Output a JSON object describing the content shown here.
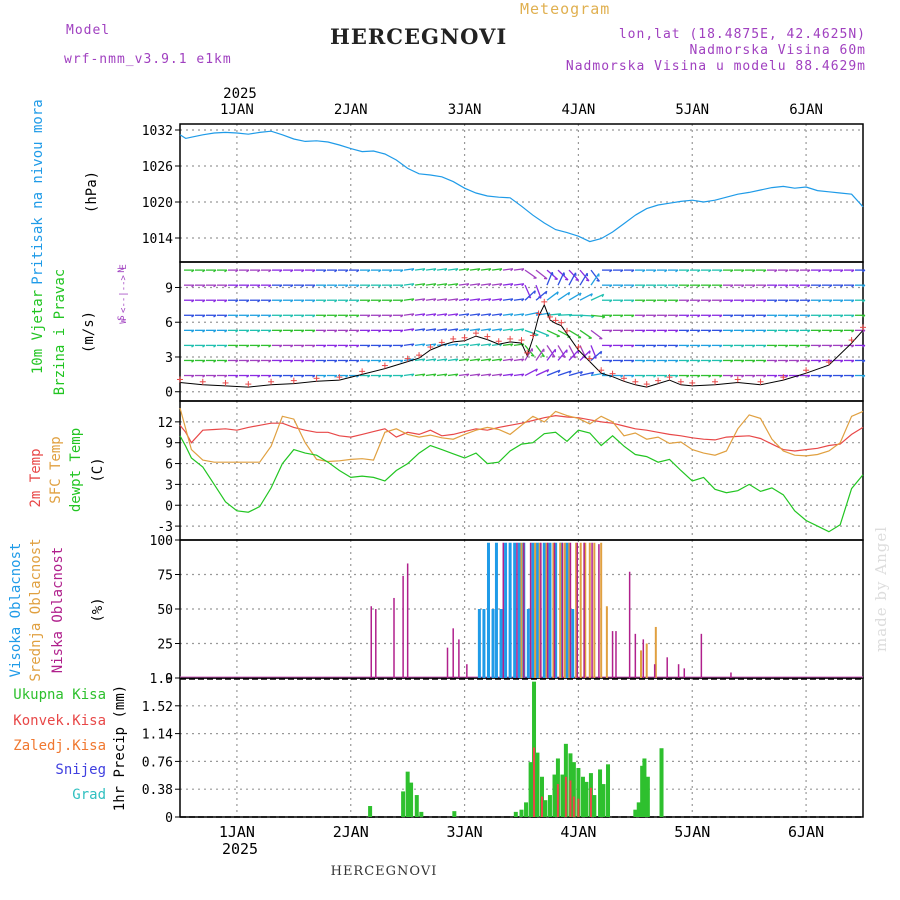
{
  "header": {
    "model_label": "Model",
    "model_value": "wrf-nmm_v3.9.1 e1km",
    "title": "HERCEGNOVI",
    "meteogram_label": "Meteogram",
    "coords": "lon,lat (18.4875E, 42.4625N)",
    "altitude": "Nadmorska Visina 60m",
    "model_altitude": "Nadmorska Visina u modelu 88.4629m",
    "footer_title": "HERCEGNOVI",
    "watermark": "made by Angel"
  },
  "colors": {
    "pressure": "#1f9be8",
    "temp2m": "#e84848",
    "sfc_temp": "#e0a040",
    "dewpt": "#22c522",
    "high_cloud": "#1f9be8",
    "mid_cloud": "#e0a040",
    "low_cloud": "#b0208c",
    "total_precip": "#2ec02e",
    "conv_precip": "#e84848",
    "header_purple": "#a040c0",
    "title_orange": "#e0b050"
  },
  "chart_data": [
    {
      "type": "line",
      "panel": "pressure",
      "ylabel_lines": [
        "Pritisak na nivou mora",
        "(hPa)"
      ],
      "ylim": [
        1010,
        1033
      ],
      "yticks": [
        1014,
        1020,
        1026,
        1032
      ],
      "x_top": {
        "year": "2025",
        "labels": [
          "1JAN",
          "2JAN",
          "3JAN",
          "4JAN",
          "5JAN",
          "6JAN"
        ]
      },
      "x_days": [
        0.5,
        0.55,
        0.6,
        0.7,
        0.8,
        0.9,
        1.0,
        1.1,
        1.2,
        1.3,
        1.4,
        1.5,
        1.6,
        1.7,
        1.8,
        1.9,
        2.0,
        2.1,
        2.2,
        2.3,
        2.4,
        2.5,
        2.6,
        2.7,
        2.8,
        2.9,
        3.0,
        3.1,
        3.2,
        3.3,
        3.4,
        3.5,
        3.6,
        3.7,
        3.8,
        3.9,
        4.0,
        4.1,
        4.2,
        4.3,
        4.4,
        4.5,
        4.6,
        4.7,
        4.8,
        4.9,
        5.0,
        5.1,
        5.2,
        5.3,
        5.4,
        5.5,
        5.6,
        5.7,
        5.8,
        5.9,
        6.0,
        6.1,
        6.2,
        6.3,
        6.4,
        6.5
      ],
      "series": [
        {
          "values": [
            1031.2,
            1030.6,
            1030.8,
            1031.2,
            1031.5,
            1031.6,
            1031.5,
            1031.3,
            1031.6,
            1031.8,
            1031.2,
            1030.5,
            1030.1,
            1030.2,
            1030.0,
            1029.5,
            1028.9,
            1028.4,
            1028.5,
            1028.0,
            1027.0,
            1025.6,
            1024.7,
            1024.5,
            1024.2,
            1023.4,
            1022.3,
            1021.5,
            1021.0,
            1020.8,
            1020.7,
            1019.3,
            1017.8,
            1016.5,
            1015.4,
            1014.9,
            1014.3,
            1013.4,
            1013.9,
            1015.0,
            1016.4,
            1017.8,
            1018.9,
            1019.5,
            1019.8,
            1020.1,
            1020.3,
            1020.0,
            1020.3,
            1020.8,
            1021.3,
            1021.6,
            1022.0,
            1022.4,
            1022.6,
            1022.3,
            1022.5,
            1021.9,
            1021.7,
            1021.5,
            1021.3,
            1019.2
          ]
        }
      ]
    },
    {
      "type": "line",
      "panel": "wind",
      "ylabel_lines": [
        "10m Vjetar",
        "Brzina i Pravac",
        "(m/s)"
      ],
      "compass": [
        "N",
        "W <--|--> E",
        "S"
      ],
      "ylim": [
        -0.8,
        11.2
      ],
      "yticks": [
        0,
        3,
        6,
        9
      ],
      "x_days": [
        0.5,
        0.7,
        0.9,
        1.1,
        1.3,
        1.5,
        1.7,
        1.9,
        2.1,
        2.3,
        2.5,
        2.6,
        2.7,
        2.8,
        2.9,
        3.0,
        3.1,
        3.2,
        3.3,
        3.4,
        3.5,
        3.55,
        3.6,
        3.65,
        3.7,
        3.75,
        3.8,
        3.85,
        3.9,
        4.0,
        4.1,
        4.2,
        4.3,
        4.4,
        4.5,
        4.6,
        4.7,
        4.8,
        4.9,
        5.0,
        5.2,
        5.4,
        5.6,
        5.8,
        6.0,
        6.2,
        6.4,
        6.5
      ],
      "series": [
        {
          "name": "speed",
          "values": [
            0.8,
            0.6,
            0.5,
            0.4,
            0.6,
            0.7,
            0.9,
            1.0,
            1.5,
            2.0,
            2.6,
            2.9,
            3.6,
            4.0,
            4.3,
            4.4,
            4.8,
            4.5,
            4.1,
            4.3,
            4.2,
            3.1,
            4.6,
            6.5,
            7.5,
            6.2,
            5.9,
            5.7,
            5.0,
            3.6,
            2.6,
            1.6,
            1.3,
            0.9,
            0.6,
            0.4,
            0.7,
            1.0,
            0.6,
            0.5,
            0.6,
            0.8,
            0.6,
            1.0,
            1.6,
            2.3,
            4.2,
            5.3
          ]
        },
        {
          "name": "gust",
          "values": [
            0.8,
            0.6,
            0.5,
            0.4,
            0.6,
            0.7,
            0.9,
            1.0,
            1.5,
            2.0,
            2.6,
            2.9,
            3.6,
            4.0,
            4.3,
            4.4,
            4.8,
            4.5,
            4.1,
            4.3,
            4.2,
            3.1,
            4.6,
            6.5,
            7.5,
            6.2,
            5.9,
            5.7,
            5.0,
            3.6,
            2.6,
            1.6,
            1.3,
            0.9,
            0.6,
            0.4,
            0.7,
            1.0,
            0.6,
            0.5,
            0.6,
            0.8,
            0.6,
            1.0,
            1.6,
            2.3,
            4.2,
            5.3
          ]
        }
      ]
    },
    {
      "type": "line",
      "panel": "temperature",
      "ylabel_lines": [
        "2m Temp",
        "SFC Temp",
        "dewpt Temp",
        "(C)"
      ],
      "ylim": [
        -5,
        15
      ],
      "yticks": [
        -3,
        0,
        3,
        6,
        9,
        12
      ],
      "x_days": [
        0.5,
        0.55,
        0.6,
        0.7,
        0.8,
        0.9,
        1.0,
        1.1,
        1.2,
        1.3,
        1.4,
        1.5,
        1.6,
        1.7,
        1.8,
        1.9,
        2.0,
        2.1,
        2.2,
        2.3,
        2.4,
        2.5,
        2.6,
        2.7,
        2.8,
        2.9,
        3.0,
        3.1,
        3.2,
        3.3,
        3.4,
        3.5,
        3.6,
        3.7,
        3.8,
        3.9,
        4.0,
        4.1,
        4.2,
        4.3,
        4.4,
        4.5,
        4.6,
        4.7,
        4.8,
        4.9,
        5.0,
        5.1,
        5.2,
        5.3,
        5.4,
        5.5,
        5.6,
        5.7,
        5.8,
        5.9,
        6.0,
        6.1,
        6.2,
        6.3,
        6.4,
        6.5
      ],
      "series": [
        {
          "name": "2m Temp",
          "values": [
            11.5,
            10.5,
            9.0,
            10.8,
            10.9,
            11.0,
            10.8,
            11.2,
            11.5,
            11.8,
            11.8,
            11.2,
            10.8,
            10.5,
            10.5,
            10.0,
            9.8,
            10.2,
            10.6,
            11.0,
            9.8,
            10.5,
            10.2,
            10.8,
            10.0,
            10.2,
            10.6,
            11.0,
            10.8,
            11.2,
            11.5,
            11.8,
            12.2,
            12.6,
            12.9,
            12.7,
            12.6,
            12.3,
            12.0,
            11.8,
            11.4,
            11.0,
            10.8,
            10.5,
            10.2,
            10.0,
            9.7,
            9.5,
            9.4,
            9.8,
            9.9,
            10.0,
            9.6,
            8.8,
            8.0,
            7.8,
            8.0,
            8.2,
            8.6,
            8.8,
            10.2,
            11.2
          ]
        },
        {
          "name": "SFC Temp",
          "values": [
            14.0,
            11.0,
            8.0,
            6.5,
            6.2,
            6.2,
            6.2,
            6.2,
            6.2,
            8.5,
            12.8,
            12.4,
            9.0,
            6.6,
            6.3,
            6.4,
            6.6,
            6.7,
            6.5,
            10.5,
            11.0,
            10.2,
            9.8,
            10.1,
            9.7,
            9.5,
            10.2,
            10.8,
            11.2,
            10.9,
            10.2,
            11.5,
            12.8,
            12.0,
            13.5,
            12.9,
            12.5,
            11.7,
            12.8,
            12.0,
            10.0,
            10.4,
            9.5,
            9.8,
            8.9,
            9.1,
            8.0,
            7.5,
            7.2,
            7.8,
            11.0,
            13.0,
            12.5,
            9.5,
            7.8,
            7.2,
            7.1,
            7.3,
            7.8,
            9.0,
            12.8,
            13.5
          ]
        },
        {
          "name": "dewpt Temp",
          "values": [
            10.0,
            8.5,
            6.8,
            5.5,
            3.0,
            0.5,
            -0.8,
            -1.0,
            -0.2,
            2.5,
            6.0,
            8.0,
            7.5,
            7.2,
            6.2,
            5.0,
            4.0,
            4.2,
            4.0,
            3.5,
            5.0,
            6.0,
            7.5,
            8.6,
            8.0,
            7.4,
            6.8,
            7.5,
            6.0,
            6.2,
            7.8,
            8.8,
            9.0,
            10.3,
            10.5,
            9.2,
            10.8,
            10.4,
            8.6,
            10.0,
            8.5,
            7.3,
            7.0,
            6.2,
            6.6,
            5.0,
            3.5,
            4.0,
            2.3,
            1.8,
            2.1,
            3.0,
            2.0,
            2.5,
            1.5,
            -0.8,
            -2.2,
            -3.0,
            -3.8,
            -2.8,
            2.4,
            4.4
          ]
        }
      ]
    },
    {
      "type": "bar",
      "panel": "cloud",
      "ylabel_lines": [
        "Visoka Oblacnost",
        "Srednja Oblacnost",
        "Niska Oblacnost",
        "(%)"
      ],
      "ylim": [
        0,
        100
      ],
      "yticks": [
        0,
        25,
        50,
        75,
        100
      ],
      "series": [
        {
          "name": "Visoka Oblacnost",
          "x": [
            3.13,
            3.17,
            3.21,
            3.25,
            3.28,
            3.32,
            3.36,
            3.4,
            3.44,
            3.48,
            3.52,
            3.56,
            3.6,
            3.64,
            3.7,
            3.75,
            3.8,
            3.85,
            3.9,
            3.95
          ],
          "values": [
            50,
            50,
            98,
            50,
            98,
            50,
            98,
            98,
            98,
            98,
            98,
            50,
            98,
            98,
            98,
            98,
            98,
            98,
            98,
            50
          ]
        },
        {
          "name": "Srednja Oblacnost",
          "x": [
            3.5,
            3.62,
            3.66,
            3.72,
            3.78,
            3.84,
            3.88,
            3.92,
            3.98,
            4.02,
            4.06,
            4.1,
            4.14,
            4.2,
            4.25,
            4.55,
            4.6,
            4.68
          ],
          "values": [
            98,
            98,
            98,
            98,
            98,
            98,
            98,
            98,
            98,
            98,
            98,
            98,
            98,
            98,
            52,
            20,
            25,
            37
          ]
        },
        {
          "name": "Niska Oblacnost",
          "x": [
            2.18,
            2.22,
            2.38,
            2.46,
            2.5,
            2.85,
            2.9,
            2.95,
            3.02,
            3.34,
            3.46,
            3.52,
            3.58,
            3.67,
            3.73,
            3.79,
            3.86,
            3.93,
            3.99,
            4.05,
            4.12,
            4.18,
            4.3,
            4.33,
            4.45,
            4.5,
            4.57,
            4.67,
            4.78,
            4.88,
            4.93,
            5.08,
            5.34
          ],
          "values": [
            52,
            50,
            58,
            74,
            83,
            22,
            36,
            28,
            10,
            98,
            98,
            98,
            98,
            98,
            98,
            98,
            98,
            98,
            98,
            98,
            98,
            97,
            34,
            34,
            77,
            32,
            28,
            10,
            15,
            10,
            7,
            32,
            4
          ]
        }
      ]
    },
    {
      "type": "bar",
      "panel": "precipitation",
      "ylabel_lines": [
        "1hr Precip (mm)"
      ],
      "legend_labels": [
        "Ukupna Kisa",
        "Konvek.Kisa",
        "Zaledj.Kisa",
        "Snijeg",
        "Grad"
      ],
      "ylim": [
        0,
        1.9
      ],
      "yticks": [
        0,
        0.38,
        0.76,
        1.14,
        1.52,
        1.9
      ],
      "x_bottom": {
        "labels": [
          "1JAN",
          "2JAN",
          "3JAN",
          "4JAN",
          "5JAN",
          "6JAN"
        ],
        "year": "2025"
      },
      "series": [
        {
          "name": "Ukupna Kisa",
          "x": [
            2.17,
            2.46,
            2.5,
            2.53,
            2.58,
            2.62,
            2.91,
            3.45,
            3.5,
            3.54,
            3.58,
            3.61,
            3.64,
            3.68,
            3.71,
            3.75,
            3.79,
            3.82,
            3.86,
            3.89,
            3.93,
            3.96,
            4.0,
            4.04,
            4.07,
            4.11,
            4.14,
            4.19,
            4.22,
            4.26,
            4.5,
            4.53,
            4.56,
            4.58,
            4.61,
            4.73
          ],
          "values": [
            0.15,
            0.35,
            0.62,
            0.47,
            0.3,
            0.07,
            0.08,
            0.07,
            0.1,
            0.2,
            0.75,
            1.85,
            0.88,
            0.55,
            0.23,
            0.3,
            0.58,
            0.8,
            0.58,
            1.0,
            0.87,
            0.75,
            0.67,
            0.55,
            0.48,
            0.6,
            0.3,
            0.65,
            0.45,
            0.72,
            0.1,
            0.2,
            0.7,
            0.8,
            0.55,
            0.94
          ]
        },
        {
          "name": "Konvek.Kisa",
          "x": [
            3.61,
            3.68,
            3.82,
            3.89,
            3.93,
            3.96,
            4.0,
            4.11
          ],
          "values": [
            0.95,
            0.28,
            0.45,
            0.55,
            0.5,
            0.28,
            0.25,
            0.4
          ]
        }
      ]
    }
  ]
}
